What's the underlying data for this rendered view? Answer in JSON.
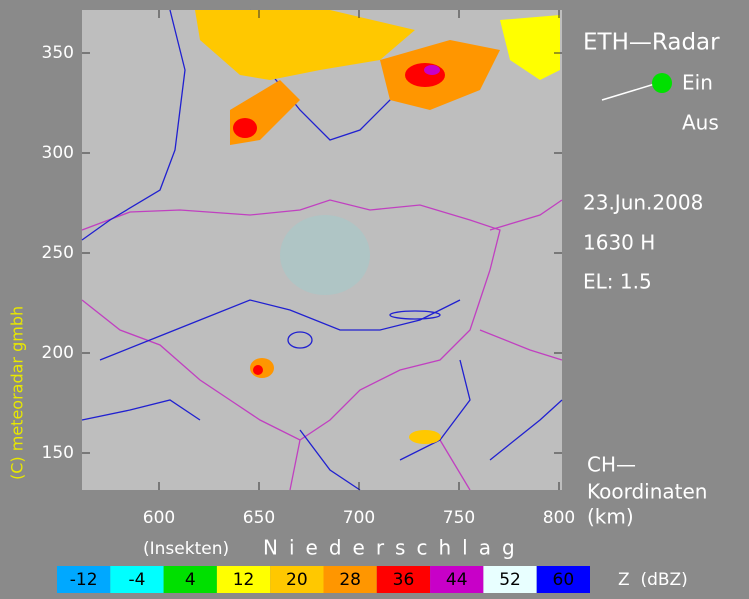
{
  "map": {
    "xlim": [
      561.5,
      801.5
    ],
    "ylim": [
      131.5,
      371.5
    ],
    "xticks": [
      600,
      650,
      700,
      750,
      800
    ],
    "yticks": [
      150,
      200,
      250,
      300,
      350
    ]
  },
  "header": {
    "title": "ETH—Radar"
  },
  "switch": {
    "on": "Ein",
    "off": "Aus"
  },
  "info": {
    "date": "23.Jun.2008",
    "time": "1630 H",
    "elevation": "EL: 1.5"
  },
  "coords": {
    "label": "CH—",
    "name": "Koordinaten",
    "unit": "(km)"
  },
  "scale": {
    "insects": "(Insekten)",
    "precip": "Niederschlag",
    "unit": "Z  (dBZ)",
    "levels": [
      {
        "value": -12,
        "color": "#00a8ff"
      },
      {
        "value": -4,
        "color": "#00ffff"
      },
      {
        "value": 4,
        "color": "#00e000"
      },
      {
        "value": 12,
        "color": "#ffff00"
      },
      {
        "value": 20,
        "color": "#ffc800"
      },
      {
        "value": 28,
        "color": "#ff9600"
      },
      {
        "value": 36,
        "color": "#ff0000"
      },
      {
        "value": 44,
        "color": "#c800c8"
      },
      {
        "value": 52,
        "color": "#e8ffff"
      },
      {
        "value": 60,
        "color": "#0000ff"
      }
    ]
  },
  "copyright": "(C) meteoradar gmbh"
}
